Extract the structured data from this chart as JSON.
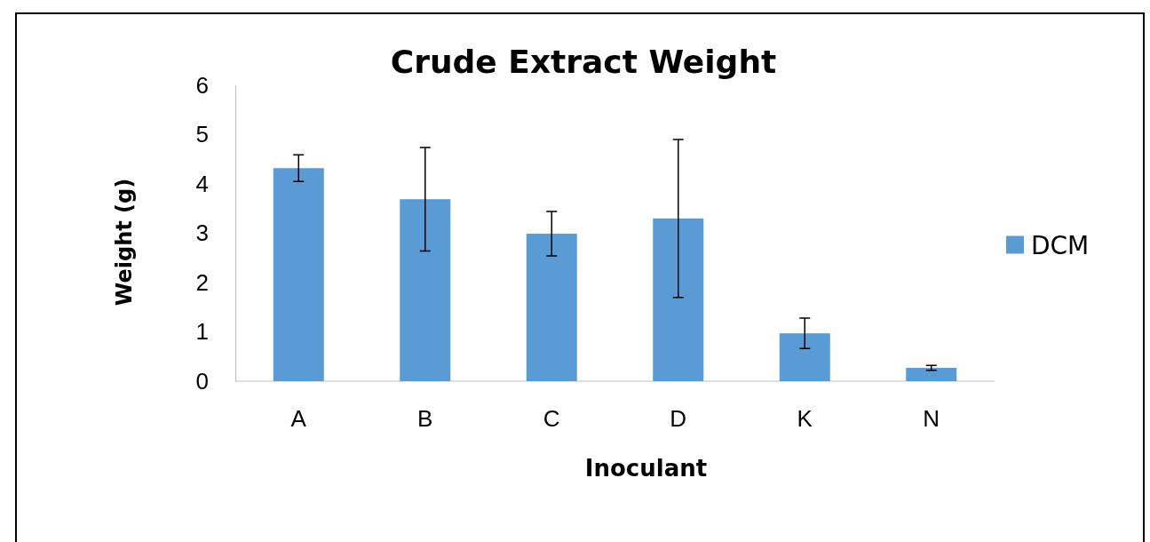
{
  "chart_data": {
    "type": "bar",
    "title": "Crude Extract Weight",
    "xlabel": "Inoculant",
    "ylabel": "Weight (g)",
    "categories": [
      "A",
      "B",
      "C",
      "D",
      "K",
      "N"
    ],
    "series": [
      {
        "name": "DCM",
        "color": "#5b9bd5",
        "values": [
          4.32,
          3.69,
          2.99,
          3.3,
          0.97,
          0.27
        ],
        "errors": [
          0.27,
          1.05,
          0.45,
          1.6,
          0.31,
          0.05
        ]
      }
    ],
    "ylim": [
      0,
      6
    ],
    "yticks": [
      0,
      1,
      2,
      3,
      4,
      5,
      6
    ],
    "grid": false,
    "legend": "right"
  }
}
